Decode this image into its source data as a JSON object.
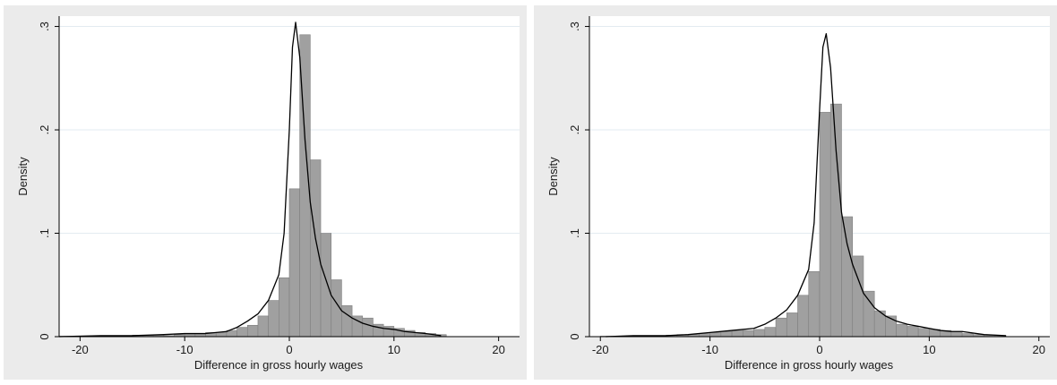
{
  "chart_data": [
    {
      "type": "bar",
      "overlay": "kernel density line",
      "xlabel": "Difference in gross hourly wages",
      "ylabel": "Density",
      "xlim": [
        -22,
        22
      ],
      "ylim": [
        0,
        0.31
      ],
      "x_ticks": [
        -20,
        -10,
        0,
        10,
        20
      ],
      "x_tick_labels": [
        "-20",
        "-10",
        "0",
        "10",
        "20"
      ],
      "y_ticks": [
        0,
        0.1,
        0.2,
        0.3
      ],
      "y_tick_labels": [
        "0",
        ".1",
        ".2",
        ".3"
      ],
      "grid": true,
      "bar_color": "#a0a0a0",
      "bin_width": 1,
      "bin_starts": [
        -22,
        -21,
        -20,
        -19,
        -18,
        -17,
        -16,
        -15,
        -14,
        -13,
        -12,
        -11,
        -10,
        -9,
        -8,
        -7,
        -6,
        -5,
        -4,
        -3,
        -2,
        -1,
        0,
        1,
        2,
        3,
        4,
        5,
        6,
        7,
        8,
        9,
        10,
        11,
        12,
        13,
        14
      ],
      "values": [
        0.0005,
        0.0005,
        0.0005,
        0.0005,
        0.0005,
        0.001,
        0.001,
        0.0015,
        0.001,
        0.0015,
        0.001,
        0.002,
        0.003,
        0.003,
        0.004,
        0.004,
        0.006,
        0.009,
        0.011,
        0.02,
        0.035,
        0.057,
        0.143,
        0.292,
        0.171,
        0.1,
        0.055,
        0.03,
        0.02,
        0.018,
        0.012,
        0.01,
        0.008,
        0.006,
        0.004,
        0.003,
        0.002
      ],
      "density_line": {
        "x": [
          -22,
          -18,
          -15,
          -12,
          -10,
          -8,
          -6,
          -5,
          -4,
          -3,
          -2,
          -1,
          -0.5,
          0,
          0.3,
          0.6,
          1,
          1.5,
          2,
          2.5,
          3,
          4,
          5,
          6,
          7,
          8,
          9,
          10,
          11,
          12,
          13,
          14.5
        ],
        "y": [
          0,
          0.001,
          0.001,
          0.002,
          0.003,
          0.003,
          0.005,
          0.009,
          0.015,
          0.022,
          0.035,
          0.06,
          0.1,
          0.2,
          0.28,
          0.304,
          0.27,
          0.19,
          0.13,
          0.095,
          0.07,
          0.04,
          0.025,
          0.018,
          0.013,
          0.01,
          0.008,
          0.007,
          0.005,
          0.004,
          0.003,
          0.001
        ]
      }
    },
    {
      "type": "bar",
      "overlay": "kernel density line",
      "xlabel": "Difference in gross hourly wages",
      "ylabel": "Density",
      "xlim": [
        -21,
        21
      ],
      "ylim": [
        0,
        0.31
      ],
      "x_ticks": [
        -20,
        -10,
        0,
        10,
        20
      ],
      "x_tick_labels": [
        "-20",
        "-10",
        "0",
        "10",
        "20"
      ],
      "y_ticks": [
        0,
        0.1,
        0.2,
        0.3
      ],
      "y_tick_labels": [
        "0",
        ".1",
        ".2",
        ".3"
      ],
      "grid": true,
      "bar_color": "#a0a0a0",
      "bin_width": 1,
      "bin_starts": [
        -20,
        -19,
        -18,
        -17,
        -16,
        -15,
        -14,
        -13,
        -12,
        -11,
        -10,
        -9,
        -8,
        -7,
        -6,
        -5,
        -4,
        -3,
        -2,
        -1,
        0,
        1,
        2,
        3,
        4,
        5,
        6,
        7,
        8,
        9,
        10,
        11,
        12,
        13,
        14,
        15,
        16
      ],
      "values": [
        0.0005,
        0.0005,
        0.0005,
        0.001,
        0.001,
        0.001,
        0.0015,
        0.002,
        0.002,
        0.003,
        0.004,
        0.005,
        0.006,
        0.006,
        0.007,
        0.009,
        0.018,
        0.023,
        0.04,
        0.063,
        0.217,
        0.225,
        0.116,
        0.078,
        0.044,
        0.025,
        0.02,
        0.012,
        0.01,
        0.008,
        0.007,
        0.006,
        0.005,
        0.003,
        0.002,
        0.0015,
        0.001
      ],
      "density_line": {
        "x": [
          -19.5,
          -17,
          -14,
          -12,
          -10,
          -8,
          -6,
          -5,
          -4,
          -3,
          -2,
          -1,
          -0.5,
          0,
          0.3,
          0.6,
          1,
          1.5,
          2,
          2.5,
          3,
          4,
          5,
          6,
          7,
          8,
          9,
          10,
          11,
          12,
          13,
          15,
          17
        ],
        "y": [
          0,
          0.001,
          0.001,
          0.002,
          0.004,
          0.006,
          0.008,
          0.012,
          0.018,
          0.026,
          0.04,
          0.065,
          0.11,
          0.22,
          0.28,
          0.293,
          0.26,
          0.18,
          0.12,
          0.09,
          0.07,
          0.042,
          0.028,
          0.02,
          0.015,
          0.012,
          0.01,
          0.008,
          0.006,
          0.005,
          0.005,
          0.002,
          0.001
        ]
      }
    }
  ],
  "colors": {
    "outer_background": "#ebebeb",
    "plot_background": "#ffffff",
    "gridline": "#e3ebf0",
    "bar_fill": "#a0a0a0",
    "bar_outline": "#7f7f7f",
    "density_line": "#000000"
  }
}
